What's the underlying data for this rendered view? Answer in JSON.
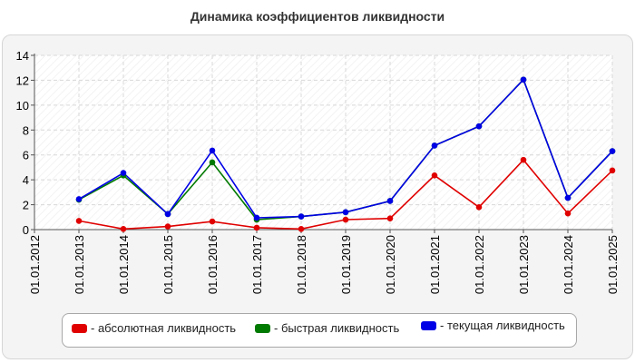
{
  "title": "Динамика коэффициентов ликвидности",
  "chart_data": {
    "type": "line",
    "title": "Динамика коэффициентов ликвидности",
    "x": [
      "01.01.2012",
      "01.01.2013",
      "01.01.2014",
      "01.01.2015",
      "01.01.2016",
      "01.01.2017",
      "01.01.2018",
      "01.01.2019",
      "01.01.2020",
      "01.01.2021",
      "01.01.2022",
      "01.01.2023",
      "01.01.2024",
      "01.01.2025"
    ],
    "ylim": [
      0,
      14
    ],
    "yticks": [
      0,
      2,
      4,
      6,
      8,
      10,
      12,
      14
    ],
    "ytick_labels": [
      "0",
      "2",
      "4",
      "6",
      "8",
      "10",
      "12",
      "14"
    ],
    "grid": true,
    "legend_position": "bottom",
    "series": [
      {
        "name": "- абсолютная ликвидность",
        "color": "#e00000",
        "values": [
          null,
          0.7,
          0.05,
          0.25,
          0.65,
          0.15,
          0.05,
          0.8,
          0.9,
          4.35,
          1.8,
          5.6,
          1.3,
          4.75
        ]
      },
      {
        "name": "- быстрая ликвидность",
        "color": "#007a00",
        "values": [
          null,
          2.4,
          4.35,
          1.25,
          5.4,
          0.8,
          1.05,
          1.4,
          2.3,
          6.75,
          8.3,
          12.05,
          2.55,
          6.3
        ]
      },
      {
        "name": "- текущая ликвидность",
        "color": "#0000e6",
        "values": [
          null,
          2.45,
          4.55,
          1.25,
          6.35,
          0.95,
          1.05,
          1.4,
          2.3,
          6.75,
          8.3,
          12.05,
          2.55,
          6.3
        ]
      }
    ]
  }
}
